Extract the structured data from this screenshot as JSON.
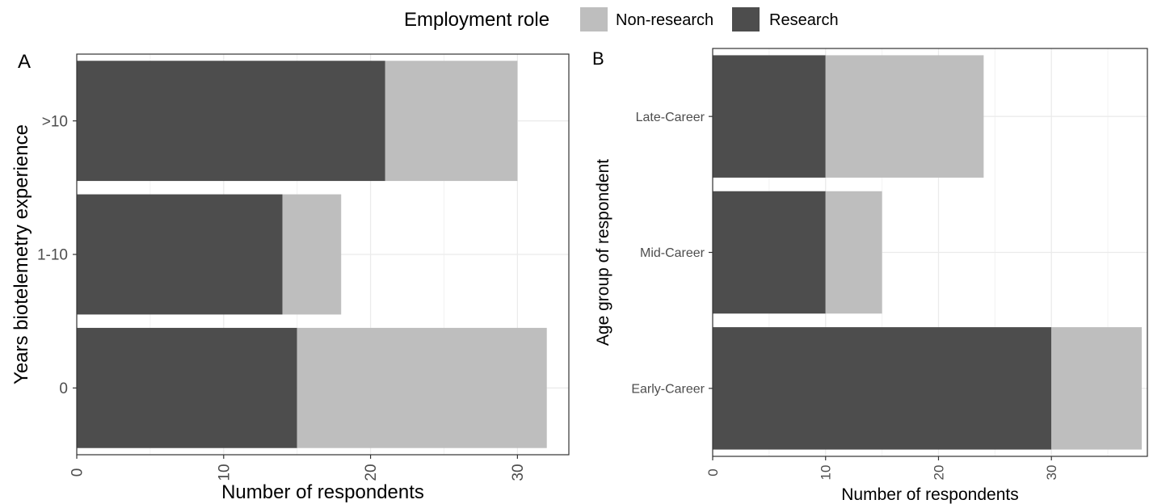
{
  "legend": {
    "title": "Employment role",
    "items": [
      {
        "label": "Non-research",
        "color": "#bebebe"
      },
      {
        "label": "Research",
        "color": "#4d4d4d"
      }
    ]
  },
  "chart_data": [
    {
      "type": "bar",
      "orientation": "horizontal",
      "stacked": true,
      "panel_tag": "A",
      "categories": [
        "0",
        "1-10",
        ">10"
      ],
      "series": [
        {
          "name": "Research",
          "color": "#4d4d4d",
          "values": [
            15,
            14,
            21
          ]
        },
        {
          "name": "Non-research",
          "color": "#bebebe",
          "values": [
            17,
            4,
            9
          ]
        }
      ],
      "xlabel": "Number of respondents",
      "ylabel": "Years biotelemetry experience",
      "xlim": [
        0,
        33.5
      ],
      "xticks": [
        0,
        10,
        20,
        30
      ],
      "grid": true
    },
    {
      "type": "bar",
      "orientation": "horizontal",
      "stacked": true,
      "panel_tag": "B",
      "categories": [
        "Early-Career",
        "Mid-Career",
        "Late-Career"
      ],
      "series": [
        {
          "name": "Research",
          "color": "#4d4d4d",
          "values": [
            30,
            10,
            10
          ]
        },
        {
          "name": "Non-research",
          "color": "#bebebe",
          "values": [
            8,
            5,
            14
          ]
        }
      ],
      "xlabel": "Number of respondents",
      "ylabel": "Age group of respondent",
      "xlim": [
        0,
        38.5
      ],
      "xticks": [
        0,
        10,
        20,
        30
      ],
      "grid": true
    }
  ]
}
